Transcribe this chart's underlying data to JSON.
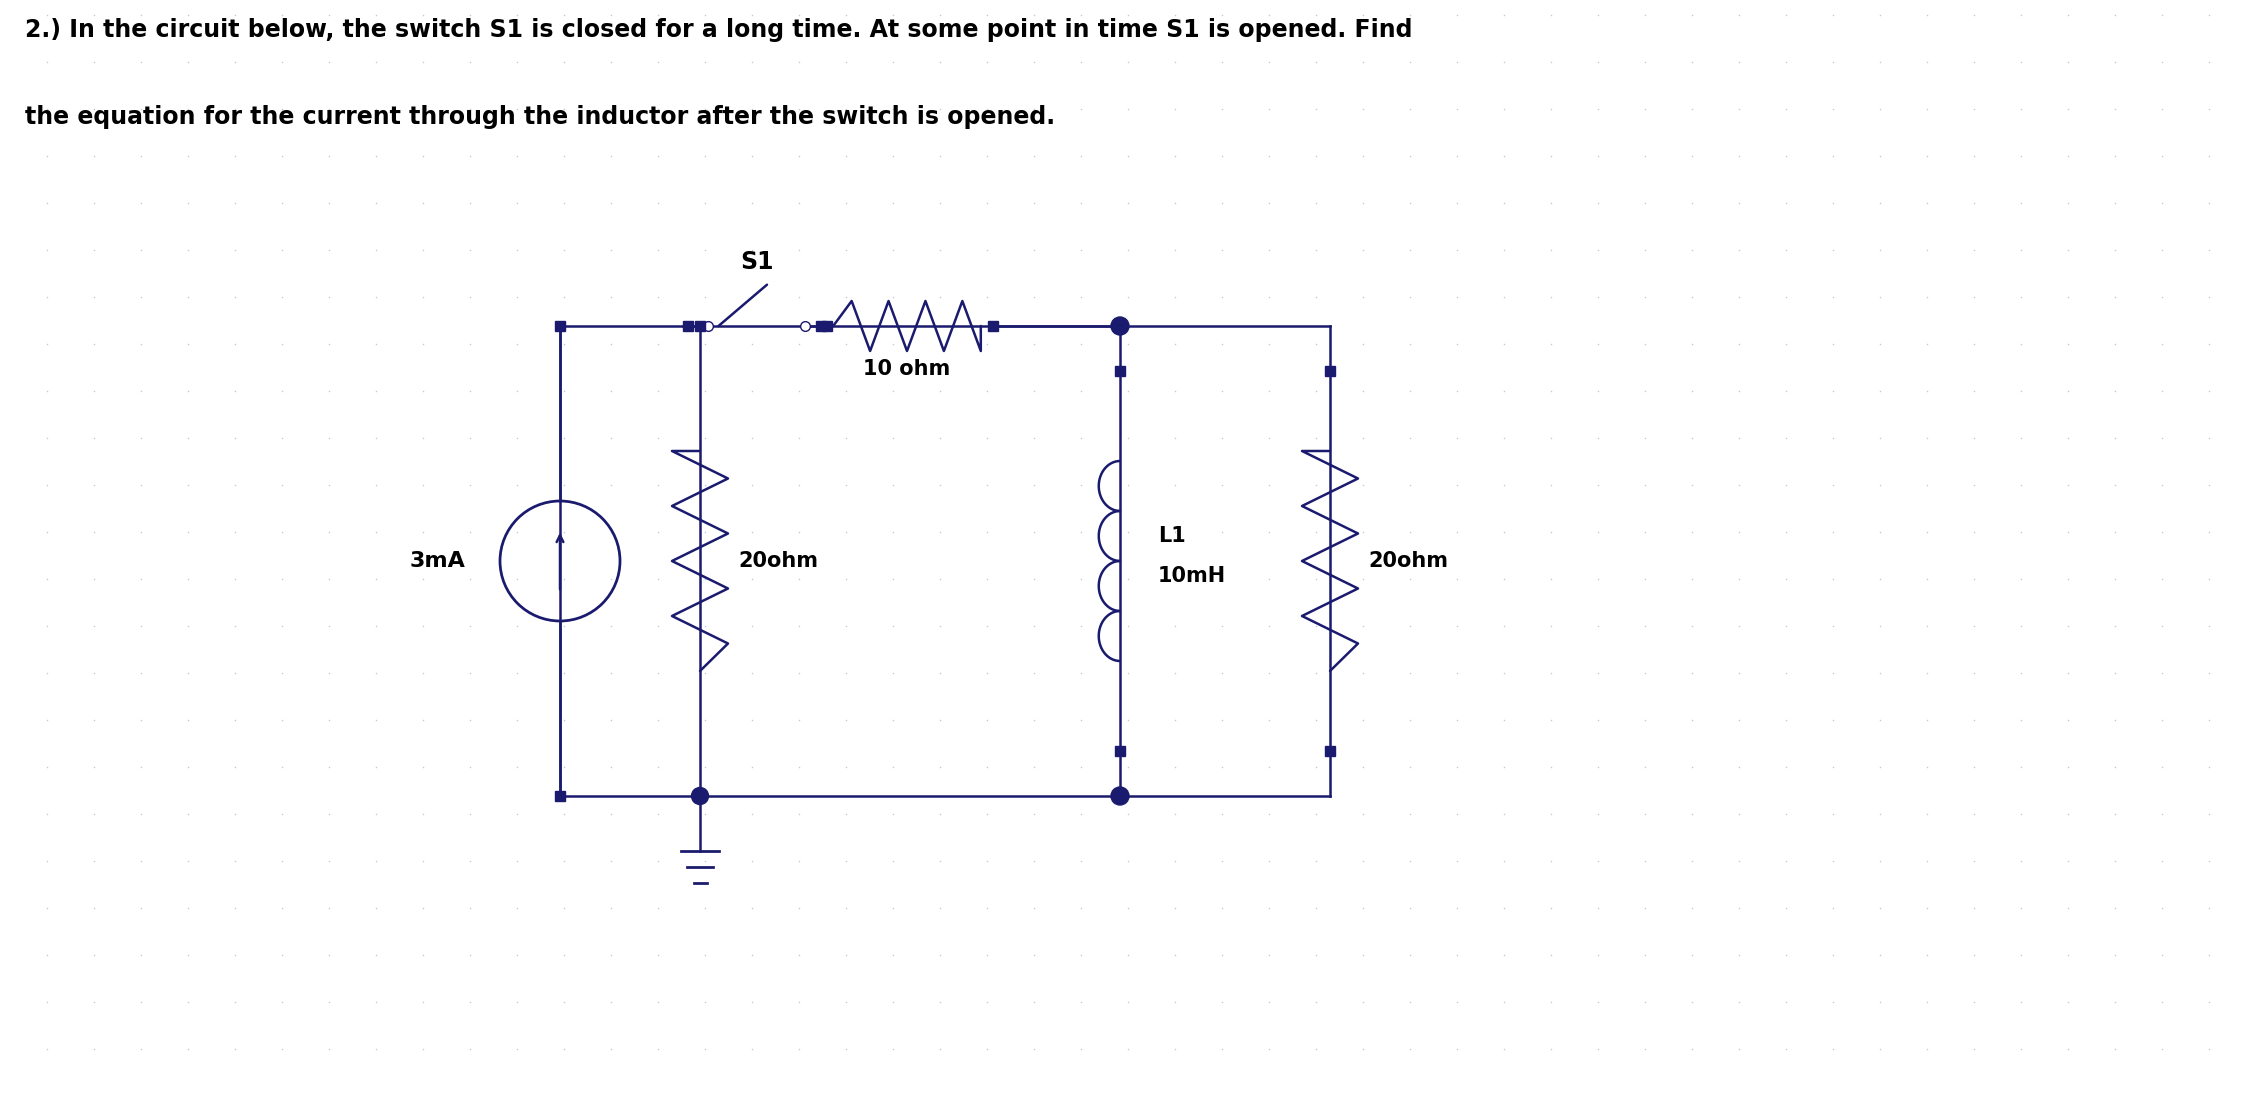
{
  "title_line1": "2.) In the circuit below, the switch S1 is closed for a long time. At some point in time S1 is opened. Find",
  "title_line2": "the equation for the current through the inductor after the switch is opened.",
  "bg_color": "#ffffff",
  "grid_color": "#b8cce4",
  "line_color": "#1a1a6e",
  "text_color": "#000000",
  "font_size_title": 17,
  "font_size_label": 15,
  "components": {
    "current_source_label": "3mA",
    "r1_label": "20ohm",
    "r2_label": "10 ohm",
    "l1_label": "L1\n10mH",
    "r3_label": "20ohm",
    "switch_label": "S1"
  }
}
